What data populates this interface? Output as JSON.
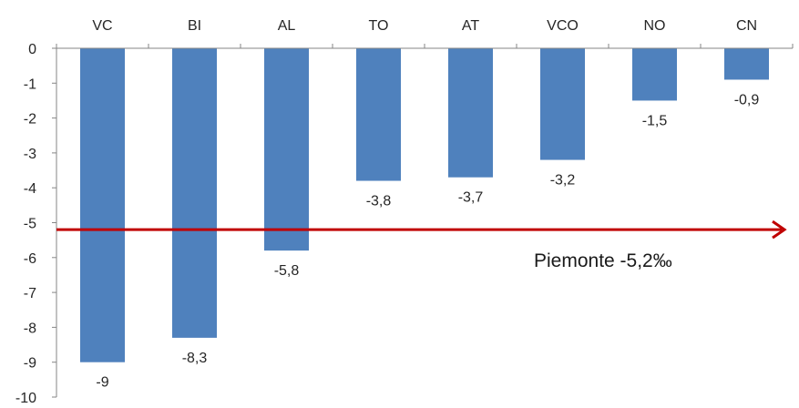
{
  "chart_data": {
    "type": "bar",
    "categories": [
      "VC",
      "BI",
      "AL",
      "TO",
      "AT",
      "VCO",
      "NO",
      "CN"
    ],
    "values": [
      -9,
      -8.3,
      -5.8,
      -3.8,
      -3.7,
      -3.2,
      -1.5,
      -0.9
    ],
    "data_labels": [
      "-9",
      "-8,3",
      "-5,8",
      "-3,8",
      "-3,7",
      "-3,2",
      "-1,5",
      "-0,9"
    ],
    "y_ticks": [
      "0",
      "-1",
      "-2",
      "-3",
      "-4",
      "-5",
      "-6",
      "-7",
      "-8",
      "-9",
      "-10"
    ],
    "ylim": [
      -10,
      0
    ],
    "category_axis_position": "top",
    "grid": false,
    "reference_line": {
      "value": -5.2,
      "label": "Piemonte -5,2‰"
    },
    "colors": {
      "bar": "#4f81bd",
      "reference_line": "#c00000",
      "axis": "#868686"
    }
  }
}
